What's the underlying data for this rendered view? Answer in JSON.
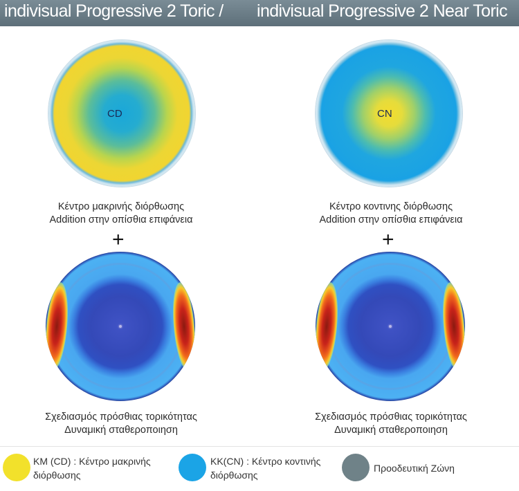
{
  "header": {
    "left_title": "indivisual Progressive 2 Toric /",
    "right_title": "indivisual Progressive 2 Near Toric"
  },
  "top_lenses": {
    "left": {
      "label": "CD",
      "desc_line1": "Κέντρο μακρινής διόρθωσης",
      "desc_line2": "Addition στην οπίσθια επιφάνεια"
    },
    "right": {
      "label": "CN",
      "desc_line1": "Κέντρο κοντινης διόρθωσης",
      "desc_line2": "Addition στην οπίσθια επιφάνεια"
    }
  },
  "plus_symbol": "+",
  "bottom_lenses": {
    "left": {
      "desc_line1": "Σχεδιασμός πρόσθιας τορικότητας",
      "desc_line2": "Δυναμική σταθεροποιηση"
    },
    "right": {
      "desc_line1": "Σχεδιασμός πρόσθιας τορικότητας",
      "desc_line2": "Δυναμική σταθεροποιηση"
    }
  },
  "legend": {
    "km_line1": "KM (CD) : Κέντρο μακρινής",
    "km_line2": "διόρθωσης",
    "kk_line1": "KK(CN) : Κέντρο κοντινής",
    "kk_line2": "διόρθωσης",
    "pz": "Προοδευτική Ζώνη",
    "colors": {
      "km": "#f2e12b",
      "kk": "#1ba4e6",
      "pz": "#6f8288"
    }
  }
}
